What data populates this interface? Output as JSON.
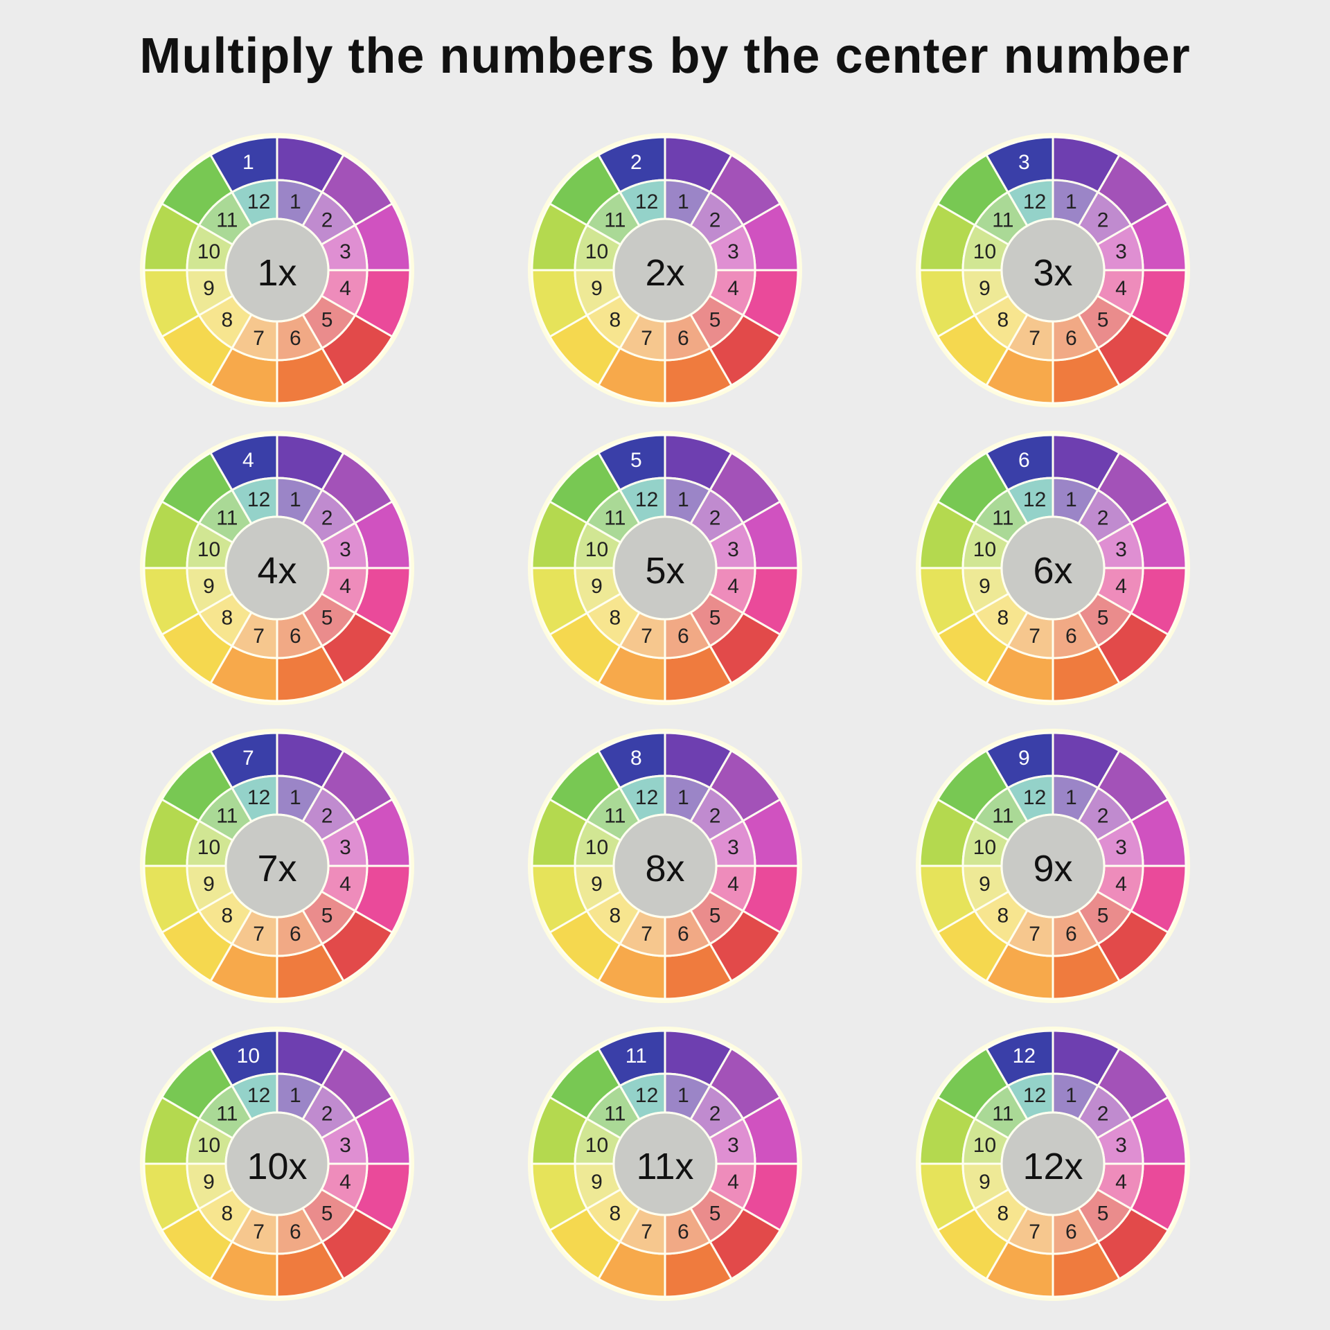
{
  "title": "Multiply the numbers by the center number",
  "background_color": "#ececec",
  "wheel": {
    "segments": 12,
    "outer_radius": 192,
    "mid_radius": 130,
    "inner_radius": 74,
    "halo_stroke": "#fffde0",
    "halo_width": 6,
    "divider_stroke": "#fffff0",
    "divider_width": 3,
    "center_fill": "#c9cac6",
    "center_font_size": 54,
    "center_font_weight": 500,
    "center_text_color": "#111",
    "inner_number_color": "#222",
    "inner_number_font_size": 30,
    "outer_number_color": "#ffffff",
    "outer_number_font_size": 30,
    "inner_numbers": [
      "1",
      "2",
      "3",
      "4",
      "5",
      "6",
      "7",
      "8",
      "9",
      "10",
      "11",
      "12"
    ],
    "outer_colors": [
      "#6e3fb0",
      "#a352b8",
      "#d052c0",
      "#ea4a9a",
      "#e24a4a",
      "#ef7b3e",
      "#f7a94b",
      "#f5d84f",
      "#e6e35a",
      "#b4d94f",
      "#78c853",
      "#4fb6a6"
    ],
    "inner_colors": [
      "#9b85c7",
      "#c08bcf",
      "#df8fd2",
      "#ee8cbb",
      "#ea8c8c",
      "#f1a985",
      "#f6c78e",
      "#f7e58f",
      "#eee996",
      "#d1e693",
      "#aad996",
      "#94d2c9"
    ],
    "segment_12_outer_color": "#3a3fa8"
  },
  "wheels": [
    {
      "center": "1x",
      "topAnswer": "1"
    },
    {
      "center": "2x",
      "topAnswer": "2"
    },
    {
      "center": "3x",
      "topAnswer": "3"
    },
    {
      "center": "4x",
      "topAnswer": "4"
    },
    {
      "center": "5x",
      "topAnswer": "5"
    },
    {
      "center": "6x",
      "topAnswer": "6"
    },
    {
      "center": "7x",
      "topAnswer": "7"
    },
    {
      "center": "8x",
      "topAnswer": "8"
    },
    {
      "center": "9x",
      "topAnswer": "9"
    },
    {
      "center": "10x",
      "topAnswer": "10"
    },
    {
      "center": "11x",
      "topAnswer": "11"
    },
    {
      "center": "12x",
      "topAnswer": "12"
    }
  ]
}
